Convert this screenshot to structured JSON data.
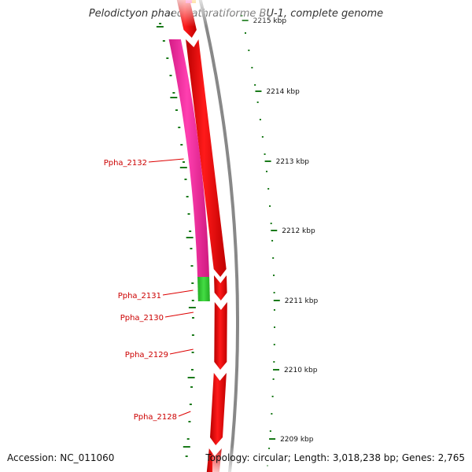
{
  "title": "Pelodictyon phaeoclathratiforme BU-1, complete genome",
  "footer": {
    "accession": "Accession: NC_011060",
    "topology": "Topology: circular; Length: 3,018,238 bp; Genes: 2,765"
  },
  "colors": {
    "forward_gene": "#ff0000",
    "reverse_gene_pink": "#ff2aa0",
    "reverse_gene_green": "#33cc33",
    "backbone": "#888888",
    "tick": "#1a7a1a",
    "label_line": "#dd0000",
    "label_text": "#cc0000"
  },
  "scale": {
    "unit": "kbp",
    "ticks": [
      {
        "kbp": 2215,
        "label": "2215 kbp"
      },
      {
        "kbp": 2214,
        "label": "2214 kbp"
      },
      {
        "kbp": 2213,
        "label": "2213 kbp"
      },
      {
        "kbp": 2212,
        "label": "2212 kbp"
      },
      {
        "kbp": 2211,
        "label": "2211 kbp"
      },
      {
        "kbp": 2210,
        "label": "2210 kbp"
      },
      {
        "kbp": 2209,
        "label": "2209 kbp"
      }
    ]
  },
  "genes": [
    {
      "label": "Ppha_2132",
      "strand": "reverse",
      "color": "pink"
    },
    {
      "label": "Ppha_2131",
      "strand": "reverse",
      "color": "green"
    },
    {
      "label": "Ppha_2130",
      "strand": "forward",
      "color": "red"
    },
    {
      "label": "Ppha_2129",
      "strand": "forward",
      "color": "red"
    },
    {
      "label": "Ppha_2128",
      "strand": "forward",
      "color": "red"
    }
  ]
}
